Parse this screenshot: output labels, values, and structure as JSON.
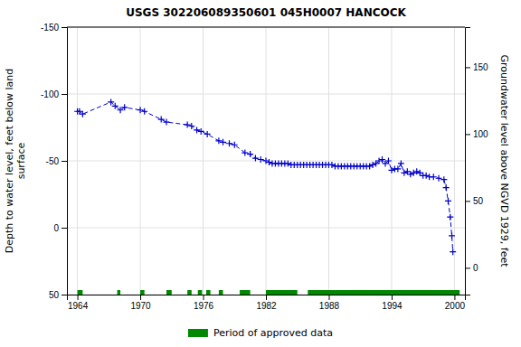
{
  "chart_data": {
    "type": "line",
    "title": "USGS 302206089350601 045H0007  HANCOCK",
    "ylabel": "Depth to water level, feet below land\nsurface",
    "y2label": "Groundwater level above NGVD 1929, feet",
    "xlim": [
      1963.0,
      2001.0
    ],
    "xticks": [
      1964,
      1970,
      1976,
      1982,
      1988,
      1994,
      2000
    ],
    "ylim": [
      50,
      -150
    ],
    "yticks": [
      50,
      0,
      -50,
      -100,
      -150
    ],
    "y2lim": [
      -20,
      180
    ],
    "y2ticks": [
      0,
      50,
      100,
      150
    ],
    "grid": true,
    "legend": "bottom",
    "series": [
      {
        "type": "line",
        "color": "#0000cc",
        "line_style": "dashed",
        "marker": "plus",
        "x": [
          1964.0,
          1964.2,
          1964.5,
          1967.2,
          1967.6,
          1968.1,
          1968.5,
          1970.0,
          1970.4,
          1972.0,
          1972.5,
          1974.5,
          1974.9,
          1975.4,
          1975.8,
          1976.4,
          1977.5,
          1977.9,
          1978.5,
          1979.0,
          1980.0,
          1980.5,
          1981.0,
          1981.5,
          1982.0,
          1982.3,
          1982.6,
          1982.9,
          1983.2,
          1983.5,
          1983.8,
          1984.1,
          1984.4,
          1984.7,
          1985.0,
          1985.3,
          1985.6,
          1985.9,
          1986.2,
          1986.5,
          1986.8,
          1987.1,
          1987.4,
          1987.7,
          1988.0,
          1988.3,
          1988.6,
          1988.9,
          1989.2,
          1989.5,
          1989.8,
          1990.1,
          1990.4,
          1990.7,
          1991.0,
          1991.3,
          1991.6,
          1991.9,
          1992.2,
          1992.5,
          1992.8,
          1993.1,
          1993.4,
          1993.7,
          1994.0,
          1994.3,
          1994.6,
          1994.9,
          1995.2,
          1995.5,
          1995.8,
          1996.1,
          1996.4,
          1996.7,
          1997.0,
          1997.3,
          1997.6,
          1998.0,
          1998.5,
          1999.0,
          1999.2,
          1999.4,
          1999.6,
          1999.75,
          1999.85
        ],
        "values": [
          -87,
          -87,
          -85,
          -94,
          -91,
          -88,
          -90,
          -88,
          -87,
          -81,
          -79,
          -77,
          -76,
          -73,
          -72,
          -70,
          -65,
          -64,
          -63,
          -62,
          -56,
          -55,
          -52,
          -51,
          -50,
          -49,
          -48,
          -48,
          -48,
          -48,
          -48,
          -48,
          -47,
          -47,
          -47,
          -47,
          -47,
          -47,
          -47,
          -47,
          -47,
          -47,
          -47,
          -47,
          -47,
          -47,
          -46,
          -46,
          -46,
          -46,
          -46,
          -46,
          -46,
          -46,
          -46,
          -46,
          -46,
          -46,
          -47,
          -48,
          -50,
          -51,
          -48,
          -50,
          -43,
          -44,
          -44,
          -48,
          -41,
          -42,
          -40,
          -41,
          -42,
          -41,
          -39,
          -39,
          -38,
          -38,
          -37,
          -36,
          -30,
          -20,
          -8,
          6,
          18
        ]
      },
      {
        "name": "Period of approved data",
        "type": "segments",
        "color": "#008800",
        "x": [
          [
            1964.0,
            1964.5
          ],
          [
            1967.8,
            1968.1
          ],
          [
            1970.0,
            1970.4
          ],
          [
            1972.5,
            1973.0
          ],
          [
            1974.5,
            1974.9
          ],
          [
            1975.5,
            1975.9
          ],
          [
            1976.3,
            1976.7
          ],
          [
            1977.5,
            1977.9
          ],
          [
            1979.5,
            1980.5
          ],
          [
            1982.0,
            1985.0
          ],
          [
            1986.0,
            2000.5
          ]
        ],
        "values": [
          50,
          50,
          50,
          50,
          50,
          50,
          50,
          50,
          50,
          50,
          50
        ]
      }
    ]
  }
}
